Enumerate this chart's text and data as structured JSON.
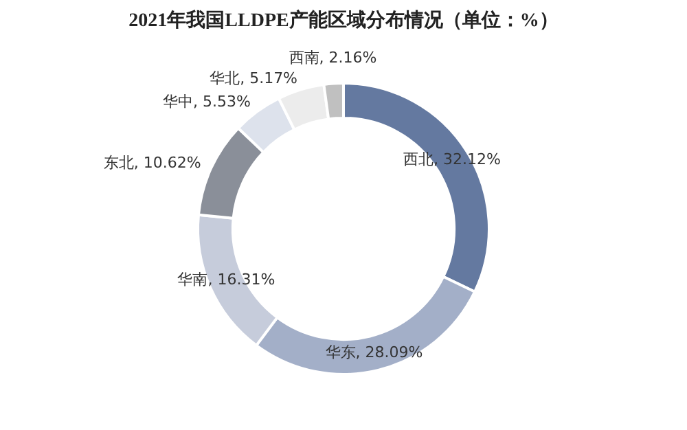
{
  "chart_data": {
    "type": "donut",
    "title": "2021年我国LLDPE产能区域分布情况（单位：%）",
    "categories": [
      "西北",
      "华东",
      "华南",
      "东北",
      "华中",
      "华北",
      "西南"
    ],
    "values": [
      32.12,
      28.09,
      16.31,
      10.62,
      5.53,
      5.17,
      2.16
    ],
    "colors": [
      "#6479a0",
      "#a3afc8",
      "#c6ccdb",
      "#8a8f99",
      "#dde2ec",
      "#ececec",
      "#c0c0c0"
    ],
    "value_labels": [
      "32.12%",
      "28.09%",
      "16.31%",
      "10.62%",
      "5.53%",
      "5.17%",
      "2.16%"
    ],
    "legend": false
  }
}
